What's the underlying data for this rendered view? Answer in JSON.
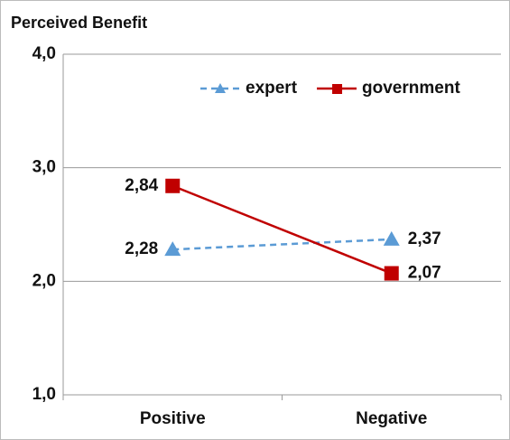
{
  "chart_data": {
    "type": "line",
    "title": "Perceived Benefit",
    "categories": [
      "Positive",
      "Negative"
    ],
    "series": [
      {
        "name": "expert",
        "color": "#5b9bd5",
        "dashed": true,
        "marker": "triangle",
        "values": [
          2.28,
          2.37
        ],
        "value_labels": [
          "2,28",
          "2,37"
        ]
      },
      {
        "name": "government",
        "color": "#c00000",
        "dashed": false,
        "marker": "square",
        "values": [
          2.84,
          2.07
        ],
        "value_labels": [
          "2,84",
          "2,07"
        ]
      }
    ],
    "ylim": [
      1,
      4
    ],
    "yticks": [
      {
        "value": 1,
        "label": "1,0"
      },
      {
        "value": 2,
        "label": "2,0"
      },
      {
        "value": 3,
        "label": "3,0"
      },
      {
        "value": 4,
        "label": "4,0"
      }
    ],
    "grid": true,
    "legend": "top-right"
  }
}
